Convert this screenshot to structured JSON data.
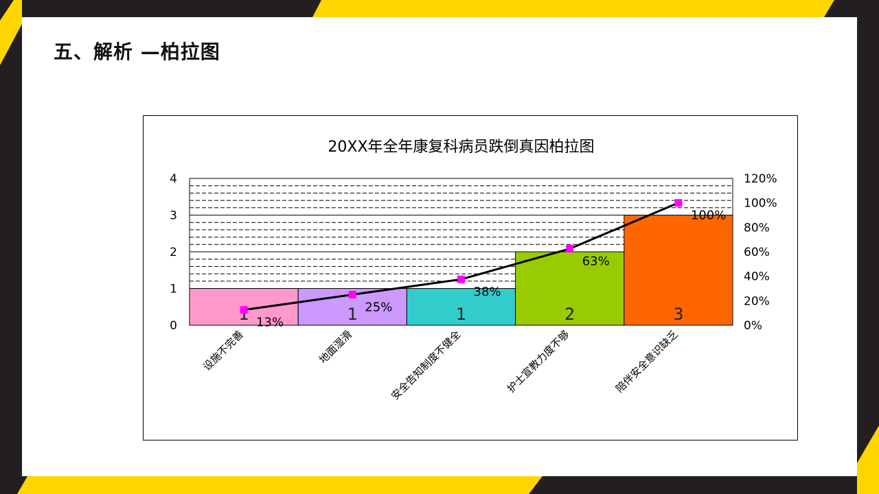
{
  "slide": {
    "heading": "五、解析  —柏拉图"
  },
  "colors": {
    "deco_yellow": "#ffd500",
    "deco_dark": "#231f20",
    "marker": "#ff00ff",
    "line": "#000000"
  },
  "chart_data": {
    "type": "bar",
    "title": "20XX年全年康复科病员跌倒真因柏拉图",
    "categories": [
      "设施不完善",
      "地面湿滑",
      "安全告知制度不健全",
      "护士宣教力度不够",
      "陪伴安全意识缺乏"
    ],
    "values": [
      1,
      1,
      1,
      2,
      3
    ],
    "value_labels": [
      "1",
      "1",
      "1",
      "2",
      "3"
    ],
    "bar_colors": [
      "#ff99cc",
      "#cc99ff",
      "#33cccc",
      "#99cc00",
      "#ff6600"
    ],
    "ylim": [
      0,
      4
    ],
    "y_ticks": [
      "0",
      "1",
      "2",
      "3",
      "4"
    ],
    "y2lim": [
      0,
      120
    ],
    "y2_ticks": [
      "0%",
      "20%",
      "40%",
      "60%",
      "80%",
      "100%",
      "120%"
    ],
    "series": [
      {
        "type": "line",
        "axis": "right",
        "values": [
          12.5,
          25,
          37.5,
          62.5,
          100
        ],
        "labels": [
          "13%",
          "25%",
          "38%",
          "63%",
          "100%"
        ]
      }
    ],
    "grid": "dashed",
    "xlabel": "",
    "ylabel": ""
  }
}
